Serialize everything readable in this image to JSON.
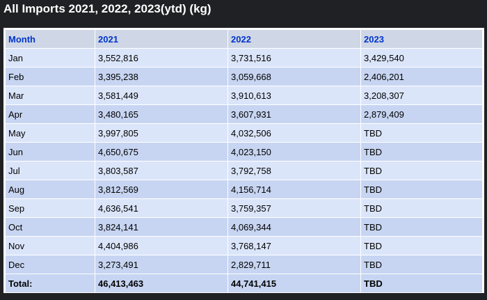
{
  "title": "All Imports 2021, 2022, 2023(ytd) (kg)",
  "table": {
    "headers": [
      "Month",
      "2021",
      "2022",
      "2023"
    ],
    "rows": [
      [
        "Jan",
        "3,552,816",
        "3,731,516",
        "3,429,540"
      ],
      [
        "Feb",
        "3,395,238",
        "3,059,668",
        "2,406,201"
      ],
      [
        "Mar",
        "3,581,449",
        "3,910,613",
        "3,208,307"
      ],
      [
        "Apr",
        "3,480,165",
        "3,607,931",
        "2,879,409"
      ],
      [
        "May",
        "3,997,805",
        "4,032,506",
        "TBD"
      ],
      [
        "Jun",
        "4,650,675",
        "4,023,150",
        "TBD"
      ],
      [
        "Jul",
        "3,803,587",
        "3,792,758",
        "TBD"
      ],
      [
        "Aug",
        "3,812,569",
        "4,156,714",
        "TBD"
      ],
      [
        "Sep",
        "4,636,541",
        "3,759,357",
        "TBD"
      ],
      [
        "Oct",
        "3,824,141",
        "4,069,344",
        "TBD"
      ],
      [
        "Nov",
        "4,404,986",
        "3,768,147",
        "TBD"
      ],
      [
        "Dec",
        "3,273,491",
        "2,829,711",
        "TBD"
      ]
    ],
    "totals": [
      "Total:",
      "46,413,463",
      "44,741,415",
      "TBD"
    ]
  },
  "colors": {
    "background": "#202124",
    "header_bg": "#cfd7e6",
    "header_text": "#0033cc",
    "row_light": "#dbe5fa",
    "row_dark": "#c7d5f2"
  }
}
